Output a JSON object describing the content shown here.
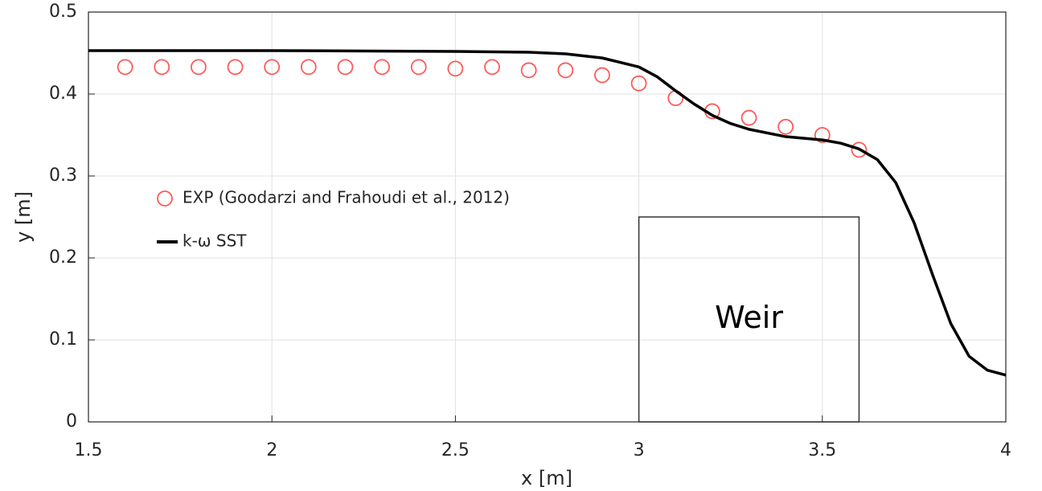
{
  "chart_data": {
    "type": "scatter",
    "xlabel": "x [m]",
    "ylabel": "y [m]",
    "xlim": [
      1.5,
      4
    ],
    "ylim": [
      0,
      0.5
    ],
    "xticks": [
      1.5,
      2,
      2.5,
      3,
      3.5,
      4
    ],
    "yticks": [
      0,
      0.1,
      0.2,
      0.3,
      0.4,
      0.5
    ],
    "grid": true,
    "legend": "left",
    "series": [
      {
        "name": "EXP (Goodarzi and Frahoudi et al., 2012)",
        "type": "scatter",
        "color": "#ff5a5a",
        "x": [
          1.6,
          1.7,
          1.8,
          1.9,
          2.0,
          2.1,
          2.2,
          2.3,
          2.4,
          2.5,
          2.6,
          2.7,
          2.8,
          2.9,
          3.0,
          3.1,
          3.2,
          3.3,
          3.4,
          3.5,
          3.6
        ],
        "values": [
          0.433,
          0.433,
          0.433,
          0.433,
          0.433,
          0.433,
          0.433,
          0.433,
          0.433,
          0.431,
          0.433,
          0.429,
          0.429,
          0.423,
          0.413,
          0.395,
          0.379,
          0.371,
          0.36,
          0.35,
          0.332
        ]
      },
      {
        "name": "k-ω SST",
        "type": "line",
        "color": "#000000",
        "x": [
          1.5,
          2.0,
          2.5,
          2.7,
          2.8,
          2.9,
          3.0,
          3.05,
          3.1,
          3.15,
          3.2,
          3.25,
          3.3,
          3.4,
          3.5,
          3.55,
          3.6,
          3.65,
          3.7,
          3.75,
          3.8,
          3.85,
          3.9,
          3.95,
          4.0
        ],
        "values": [
          0.453,
          0.453,
          0.452,
          0.451,
          0.449,
          0.444,
          0.433,
          0.421,
          0.404,
          0.388,
          0.374,
          0.364,
          0.357,
          0.348,
          0.344,
          0.34,
          0.333,
          0.32,
          0.292,
          0.243,
          0.18,
          0.12,
          0.08,
          0.063,
          0.057
        ]
      }
    ],
    "annotations": [
      {
        "text": "Weir",
        "x0": 3,
        "x1": 3.6,
        "y0": 0,
        "y1": 0.25
      }
    ]
  }
}
